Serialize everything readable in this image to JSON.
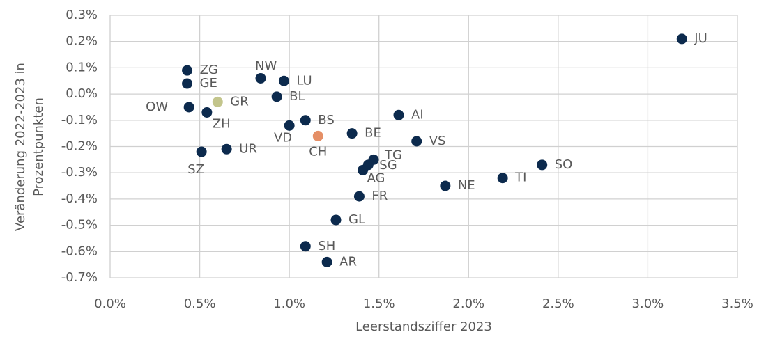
{
  "chart_data": {
    "type": "scatter",
    "xlabel": "Leerstandsziffer 2023",
    "ylabel": [
      "Veränderung 2022-2023 in",
      "Prozentpunkten"
    ],
    "xlim": [
      0,
      3.5
    ],
    "ylim": [
      -0.7,
      0.3
    ],
    "xticks": [
      {
        "value": 0,
        "label": "0.0%"
      },
      {
        "value": 0.5,
        "label": "0.5%"
      },
      {
        "value": 1,
        "label": "1.0%"
      },
      {
        "value": 1.5,
        "label": "1.5%"
      },
      {
        "value": 2,
        "label": "2.0%"
      },
      {
        "value": 2.5,
        "label": "2.5%"
      },
      {
        "value": 3,
        "label": "3.0%"
      },
      {
        "value": 3.5,
        "label": "3.5%"
      }
    ],
    "yticks": [
      {
        "value": 0.3,
        "label": "0.3%"
      },
      {
        "value": 0.2,
        "label": "0.2%"
      },
      {
        "value": 0.1,
        "label": "0.1%"
      },
      {
        "value": 0,
        "label": "0.0%"
      },
      {
        "value": -0.1,
        "label": "-0.1%"
      },
      {
        "value": -0.2,
        "label": "-0.2%"
      },
      {
        "value": -0.3,
        "label": "-0.3%"
      },
      {
        "value": -0.4,
        "label": "-0.4%"
      },
      {
        "value": -0.5,
        "label": "-0.5%"
      },
      {
        "value": -0.6,
        "label": "-0.6%"
      },
      {
        "value": -0.7,
        "label": "-0.7%"
      }
    ],
    "grid": true,
    "point_labels": [
      "JU",
      "ZG",
      "GE",
      "OW",
      "GR",
      "ZH",
      "NW",
      "LU",
      "BL",
      "BS",
      "VD",
      "CH",
      "BE",
      "AI",
      "VS",
      "SZ",
      "UR",
      "TG",
      "SG",
      "AG",
      "FR",
      "NE",
      "TI",
      "SO",
      "GL",
      "SH",
      "AR"
    ],
    "x": [
      3.19,
      0.43,
      0.43,
      0.44,
      0.6,
      0.54,
      0.84,
      0.97,
      0.93,
      1.09,
      1.0,
      1.16,
      1.35,
      1.61,
      1.71,
      0.51,
      0.65,
      1.47,
      1.44,
      1.41,
      1.39,
      1.87,
      2.19,
      2.41,
      1.26,
      1.09,
      1.21
    ],
    "values": [
      0.21,
      0.09,
      0.04,
      -0.05,
      -0.03,
      -0.07,
      0.06,
      0.05,
      -0.01,
      -0.1,
      -0.12,
      -0.16,
      -0.15,
      -0.08,
      -0.18,
      -0.22,
      -0.21,
      -0.25,
      -0.27,
      -0.29,
      -0.39,
      -0.35,
      -0.32,
      -0.27,
      -0.48,
      -0.58,
      -0.64
    ],
    "colors": [
      "#0c2a4d",
      "#0c2a4d",
      "#0c2a4d",
      "#0c2a4d",
      "#c3c58c",
      "#0c2a4d",
      "#0c2a4d",
      "#0c2a4d",
      "#0c2a4d",
      "#0c2a4d",
      "#0c2a4d",
      "#e58f66",
      "#0c2a4d",
      "#0c2a4d",
      "#0c2a4d",
      "#0c2a4d",
      "#0c2a4d",
      "#0c2a4d",
      "#0c2a4d",
      "#0c2a4d",
      "#0c2a4d",
      "#0c2a4d",
      "#0c2a4d",
      "#0c2a4d",
      "#0c2a4d",
      "#0c2a4d",
      "#0c2a4d"
    ]
  }
}
